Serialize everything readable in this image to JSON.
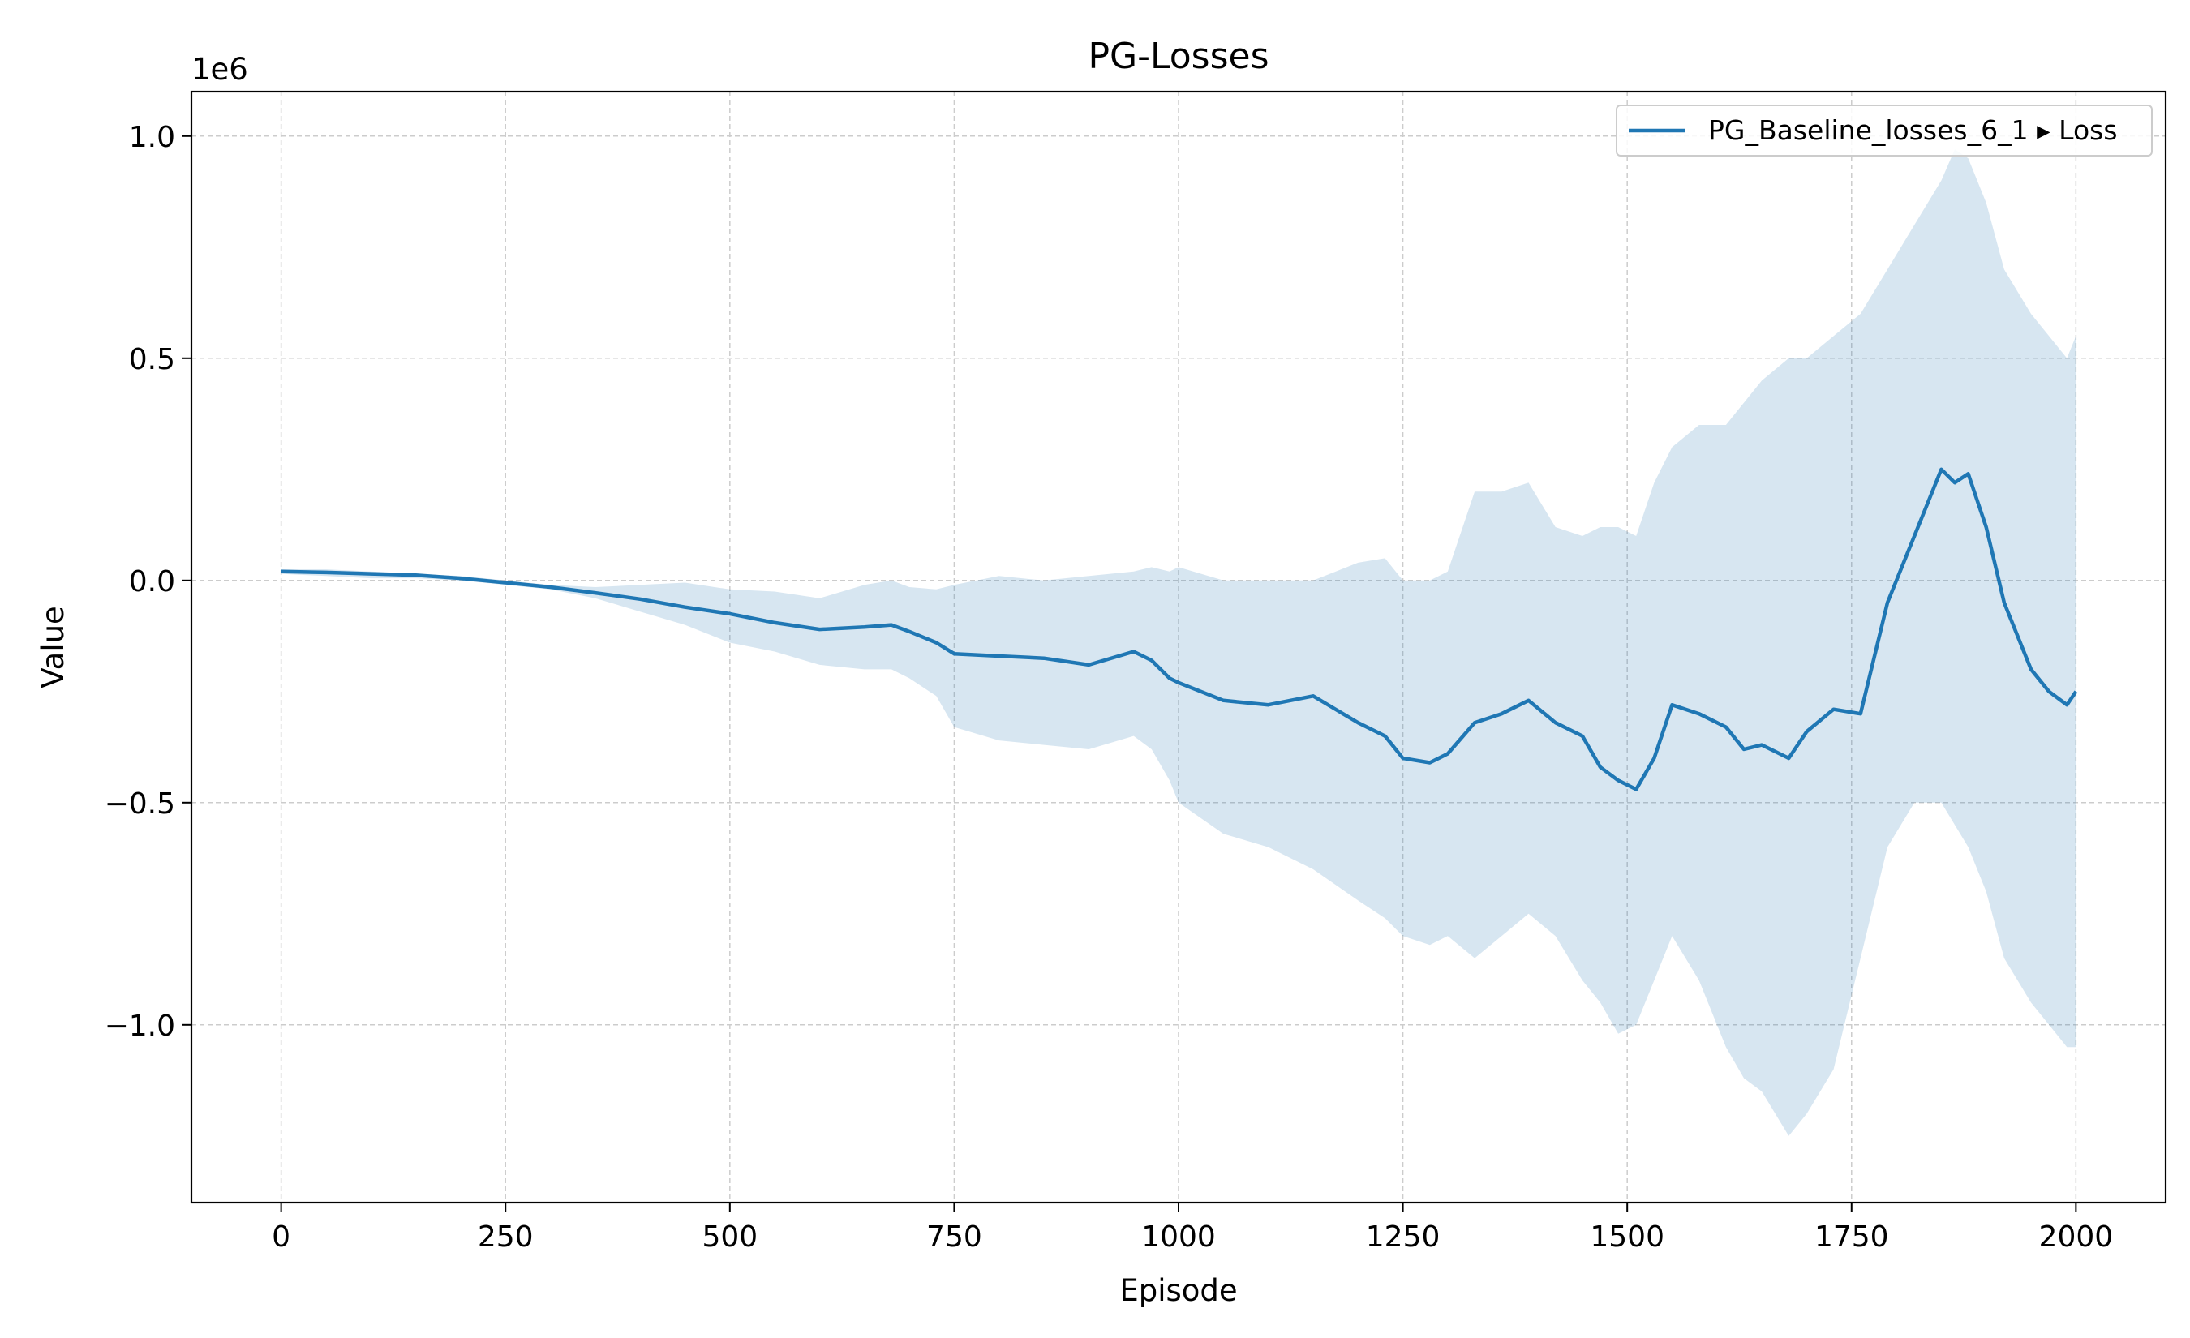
{
  "chart_data": {
    "type": "line",
    "title": "PG-Losses",
    "xlabel": "Episode",
    "ylabel": "Value",
    "y_scale_label": "1e6",
    "y_multiplier": 1000000,
    "xlim": [
      -100,
      2100
    ],
    "ylim": [
      -1.4,
      1.1
    ],
    "x_ticks": [
      0,
      250,
      500,
      750,
      1000,
      1250,
      1500,
      1750,
      2000
    ],
    "x_tick_labels": [
      "0",
      "250",
      "500",
      "750",
      "1000",
      "1250",
      "1500",
      "1750",
      "2000"
    ],
    "y_ticks": [
      1.0,
      0.5,
      0.0,
      -0.5,
      -1.0
    ],
    "y_tick_labels": [
      "1.0",
      "0.5",
      "0.0",
      "−0.5",
      "−1.0"
    ],
    "grid": true,
    "legend_position": "top-right",
    "colors": {
      "line": "#1f77b4",
      "band": "#1f77b4"
    },
    "series": [
      {
        "name": "PG_Baseline_losses_6_1 ▸ Loss",
        "x": [
          0,
          50,
          100,
          150,
          200,
          250,
          300,
          350,
          400,
          450,
          500,
          550,
          600,
          650,
          680,
          700,
          730,
          750,
          800,
          850,
          900,
          950,
          970,
          990,
          1000,
          1050,
          1100,
          1150,
          1200,
          1230,
          1250,
          1280,
          1300,
          1330,
          1360,
          1390,
          1420,
          1450,
          1470,
          1490,
          1510,
          1530,
          1550,
          1580,
          1610,
          1630,
          1650,
          1680,
          1700,
          1730,
          1760,
          1790,
          1820,
          1850,
          1865,
          1880,
          1900,
          1920,
          1950,
          1970,
          1990,
          2000
        ],
        "y": [
          0.02,
          0.018,
          0.015,
          0.012,
          0.005,
          -0.005,
          -0.015,
          -0.028,
          -0.042,
          -0.06,
          -0.075,
          -0.095,
          -0.11,
          -0.105,
          -0.1,
          -0.115,
          -0.14,
          -0.165,
          -0.17,
          -0.175,
          -0.19,
          -0.16,
          -0.18,
          -0.22,
          -0.23,
          -0.27,
          -0.28,
          -0.26,
          -0.32,
          -0.35,
          -0.4,
          -0.41,
          -0.39,
          -0.32,
          -0.3,
          -0.27,
          -0.32,
          -0.35,
          -0.42,
          -0.45,
          -0.47,
          -0.4,
          -0.28,
          -0.3,
          -0.33,
          -0.38,
          -0.37,
          -0.4,
          -0.34,
          -0.29,
          -0.3,
          -0.05,
          0.1,
          0.25,
          0.22,
          0.24,
          0.12,
          -0.05,
          -0.2,
          -0.25,
          -0.28,
          -0.25
        ],
        "upper": [
          0.025,
          0.025,
          0.02,
          0.015,
          0.01,
          0.0,
          -0.01,
          -0.015,
          -0.01,
          -0.005,
          -0.02,
          -0.025,
          -0.04,
          -0.01,
          0.0,
          -0.015,
          -0.02,
          -0.01,
          0.01,
          0.0,
          0.01,
          0.02,
          0.03,
          0.02,
          0.03,
          0.0,
          0.0,
          0.0,
          0.04,
          0.05,
          0.0,
          0.0,
          0.02,
          0.2,
          0.2,
          0.22,
          0.12,
          0.1,
          0.12,
          0.12,
          0.1,
          0.22,
          0.3,
          0.35,
          0.35,
          0.4,
          0.45,
          0.5,
          0.5,
          0.55,
          0.6,
          0.7,
          0.8,
          0.9,
          0.97,
          0.95,
          0.85,
          0.7,
          0.6,
          0.55,
          0.5,
          0.55
        ],
        "lower": [
          0.015,
          0.01,
          0.005,
          0.005,
          0.0,
          -0.01,
          -0.02,
          -0.04,
          -0.07,
          -0.1,
          -0.14,
          -0.16,
          -0.19,
          -0.2,
          -0.2,
          -0.22,
          -0.26,
          -0.33,
          -0.36,
          -0.37,
          -0.38,
          -0.35,
          -0.38,
          -0.45,
          -0.5,
          -0.57,
          -0.6,
          -0.65,
          -0.72,
          -0.76,
          -0.8,
          -0.82,
          -0.8,
          -0.85,
          -0.8,
          -0.75,
          -0.8,
          -0.9,
          -0.95,
          -1.02,
          -1.0,
          -0.9,
          -0.8,
          -0.9,
          -1.05,
          -1.12,
          -1.15,
          -1.25,
          -1.2,
          -1.1,
          -0.85,
          -0.6,
          -0.5,
          -0.5,
          -0.55,
          -0.6,
          -0.7,
          -0.85,
          -0.95,
          -1.0,
          -1.05,
          -1.05
        ]
      }
    ]
  }
}
